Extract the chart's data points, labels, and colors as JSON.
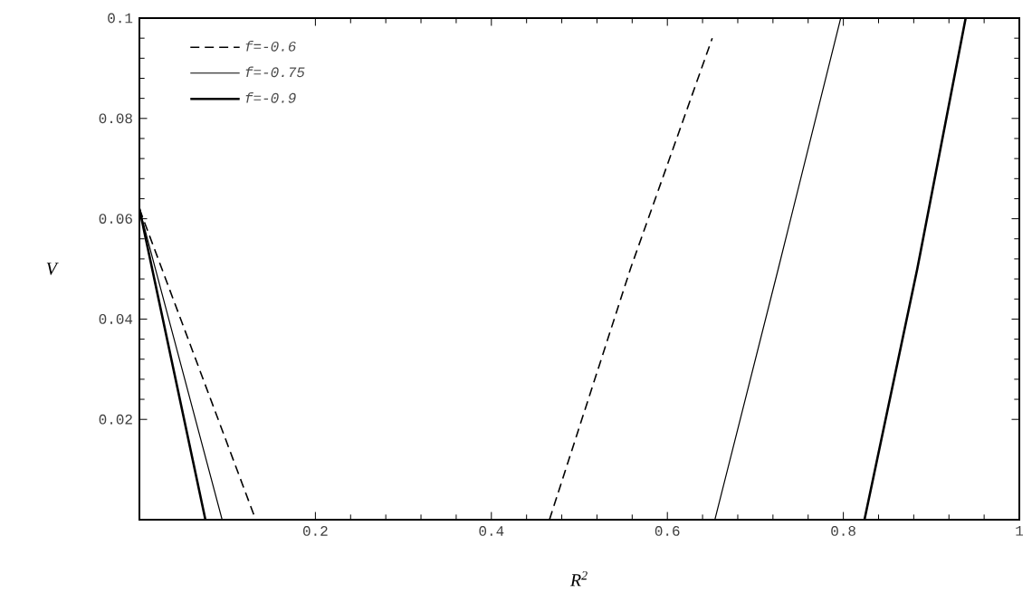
{
  "chart_data": {
    "type": "line",
    "xlabel": "R$^{2}$",
    "ylabel": "V",
    "xlim": [
      0,
      1
    ],
    "ylim": [
      0,
      0.1
    ],
    "xticks": [
      0.2,
      0.4,
      0.6,
      0.8,
      1
    ],
    "yticks": [
      0.02,
      0.04,
      0.06,
      0.08,
      0.1
    ],
    "legend": "top left",
    "grid": false,
    "series": [
      {
        "name": "f=-0.6",
        "color": "#000000",
        "line_style": "dashed",
        "x": [
          0,
          0.13,
          null,
          0.466,
          0.558,
          0.651
        ],
        "values": [
          0.062,
          0.001,
          null,
          0,
          0.05,
          0.096
        ]
      },
      {
        "name": "f=-0.75",
        "color": "#000000",
        "line_style": "solid",
        "x": [
          0,
          0.094,
          null,
          0.654,
          0.726,
          0.797
        ],
        "values": [
          0.062,
          0,
          null,
          0,
          0.05,
          0.1
        ]
      },
      {
        "name": "f=-0.9",
        "color": "#000000",
        "line_style": "solid",
        "x": [
          0,
          0.075,
          null,
          0.824,
          0.884,
          0.939
        ],
        "values": [
          0.062,
          0,
          null,
          0,
          0.05,
          0.1
        ]
      }
    ]
  }
}
